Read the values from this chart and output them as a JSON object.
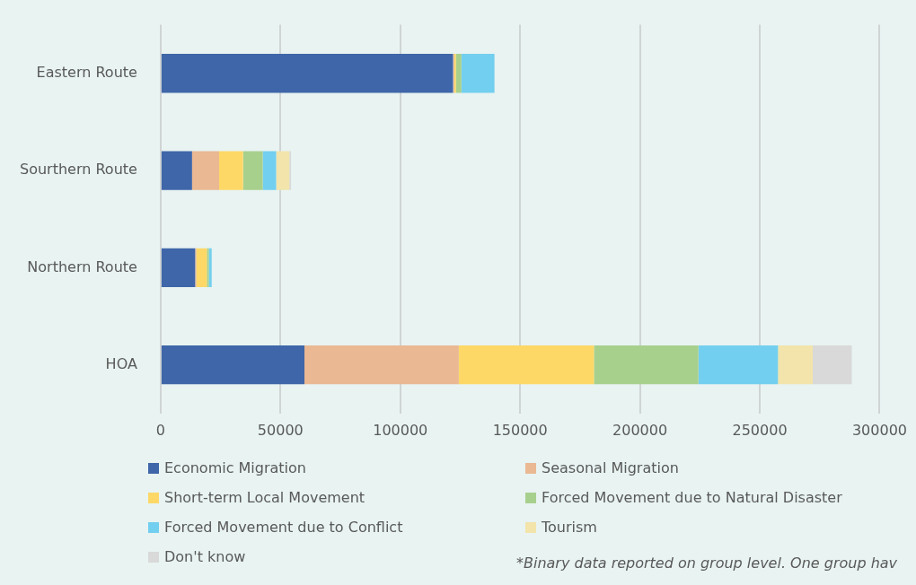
{
  "chart_data": {
    "type": "bar",
    "orientation": "horizontal",
    "stacked": true,
    "categories": [
      "Eastern Route",
      "Sourthern Route",
      "Northern Route",
      "HOA"
    ],
    "series": [
      {
        "name": "Economic Migration",
        "color": "#3f66a8",
        "values": [
          122000,
          13100,
          14400,
          60000
        ]
      },
      {
        "name": "Seasonal Migration",
        "color": "#eab893",
        "values": [
          500,
          11300,
          500,
          64400
        ]
      },
      {
        "name": "Short-term Local Movement",
        "color": "#fdd866",
        "values": [
          700,
          10000,
          4400,
          56400
        ]
      },
      {
        "name": "Forced Movement due to Natural Disaster",
        "color": "#a8d08d",
        "values": [
          2300,
          8200,
          800,
          43600
        ]
      },
      {
        "name": "Forced Movement due to Conflict",
        "color": "#73cfef",
        "values": [
          13800,
          5600,
          1200,
          33200
        ]
      },
      {
        "name": "Tourism",
        "color": "#f2e4aa",
        "values": [
          null,
          5500,
          null,
          14500
        ]
      },
      {
        "name": "Don't know",
        "color": "#d9d9d9",
        "values": [
          null,
          700,
          null,
          16300
        ]
      }
    ],
    "xlim": [
      0,
      300000
    ],
    "xticks": [
      0,
      50000,
      100000,
      150000,
      200000,
      250000,
      300000
    ],
    "grid": "x",
    "legend": "bottom",
    "annotations": [
      "*Binary data reported on group level. One group hav"
    ]
  }
}
